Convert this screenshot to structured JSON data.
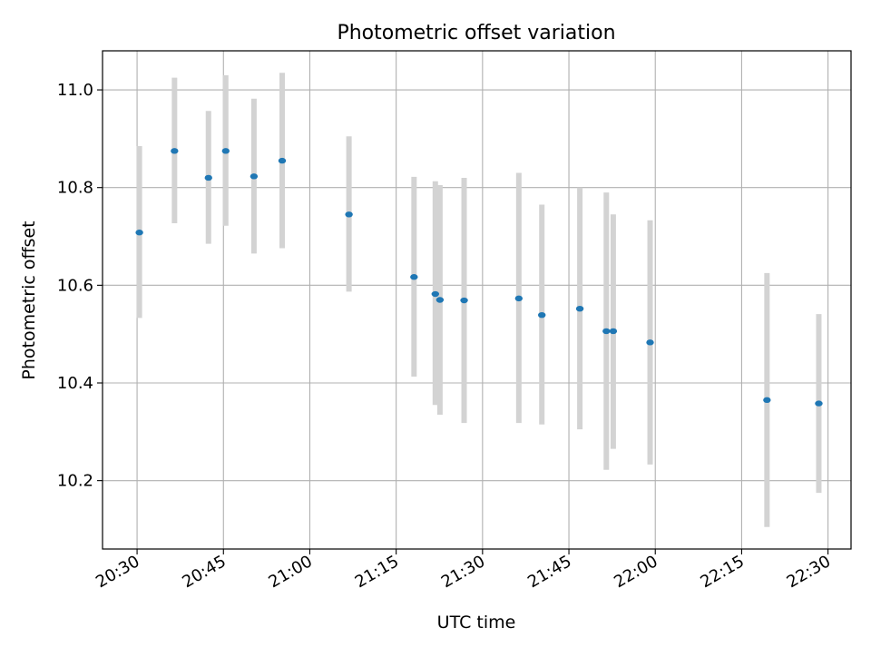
{
  "chart_data": {
    "type": "scatter",
    "title": "Photometric offset variation",
    "xlabel": "UTC time",
    "ylabel": "Photometric offset",
    "x_is_time": true,
    "xlim": [
      "20:24",
      "22:34"
    ],
    "ylim": [
      10.06,
      11.08
    ],
    "x_ticks": [
      "20:30",
      "20:45",
      "21:00",
      "21:15",
      "21:30",
      "21:45",
      "22:00",
      "22:15",
      "22:30"
    ],
    "y_ticks": [
      10.2,
      10.4,
      10.6,
      10.8,
      11.0
    ],
    "y_tick_labels": [
      "10.2",
      "10.4",
      "10.6",
      "10.8",
      "11.0"
    ],
    "grid": true,
    "colors": {
      "point": "#1f77b4",
      "errorbar": "#d3d3d3",
      "grid": "#b0b0b0"
    },
    "points": [
      {
        "t": "20:30:24",
        "y": 10.708,
        "lo": 10.533,
        "hi": 10.885
      },
      {
        "t": "20:36:30",
        "y": 10.875,
        "lo": 10.727,
        "hi": 11.025
      },
      {
        "t": "20:42:24",
        "y": 10.82,
        "lo": 10.685,
        "hi": 10.957
      },
      {
        "t": "20:45:24",
        "y": 10.875,
        "lo": 10.722,
        "hi": 11.03
      },
      {
        "t": "20:50:18",
        "y": 10.823,
        "lo": 10.665,
        "hi": 10.982
      },
      {
        "t": "20:55:12",
        "y": 10.855,
        "lo": 10.676,
        "hi": 11.035
      },
      {
        "t": "21:06:48",
        "y": 10.745,
        "lo": 10.587,
        "hi": 10.905
      },
      {
        "t": "21:18:06",
        "y": 10.617,
        "lo": 10.413,
        "hi": 10.822
      },
      {
        "t": "21:21:48",
        "y": 10.582,
        "lo": 10.355,
        "hi": 10.813
      },
      {
        "t": "21:22:36",
        "y": 10.57,
        "lo": 10.335,
        "hi": 10.805
      },
      {
        "t": "21:26:48",
        "y": 10.569,
        "lo": 10.318,
        "hi": 10.82
      },
      {
        "t": "21:36:18",
        "y": 10.573,
        "lo": 10.318,
        "hi": 10.83
      },
      {
        "t": "21:40:18",
        "y": 10.539,
        "lo": 10.315,
        "hi": 10.765
      },
      {
        "t": "21:46:54",
        "y": 10.552,
        "lo": 10.305,
        "hi": 10.8
      },
      {
        "t": "21:51:30",
        "y": 10.506,
        "lo": 10.222,
        "hi": 10.79
      },
      {
        "t": "21:52:42",
        "y": 10.506,
        "lo": 10.265,
        "hi": 10.745
      },
      {
        "t": "21:59:06",
        "y": 10.483,
        "lo": 10.233,
        "hi": 10.733
      },
      {
        "t": "22:19:24",
        "y": 10.365,
        "lo": 10.105,
        "hi": 10.625
      },
      {
        "t": "22:28:24",
        "y": 10.358,
        "lo": 10.175,
        "hi": 10.541
      }
    ]
  }
}
